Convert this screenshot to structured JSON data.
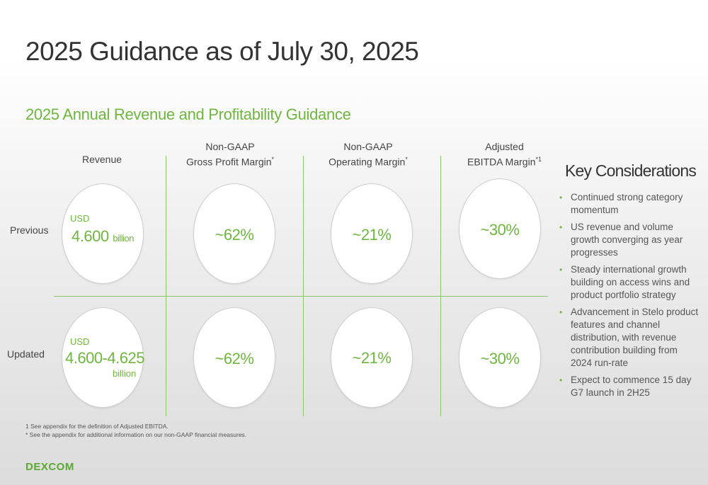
{
  "title": "2025 Guidance as of July 30, 2025",
  "subtitle": "2025 Annual Revenue and Profitability Guidance",
  "columns": [
    {
      "line1": "",
      "line2": "Revenue",
      "sup": ""
    },
    {
      "line1": "Non-GAAP",
      "line2": "Gross Profit Margin",
      "sup": "*"
    },
    {
      "line1": "Non-GAAP",
      "line2": "Operating Margin",
      "sup": "*"
    },
    {
      "line1": "Adjusted",
      "line2": "EBITDA Margin",
      "sup": "*1"
    }
  ],
  "rows": [
    {
      "label": "Previous",
      "revenue": {
        "currency": "USD",
        "value": "4.600",
        "unit": "billion"
      },
      "gross_margin": "~62%",
      "operating_margin": "~21%",
      "ebitda_margin": "~30%"
    },
    {
      "label": "Updated",
      "revenue": {
        "currency": "USD",
        "value": "4.600-4.625",
        "unit": "billion"
      },
      "gross_margin": "~62%",
      "operating_margin": "~21%",
      "ebitda_margin": "~30%"
    }
  ],
  "key_considerations": {
    "title": "Key Considerations",
    "items": [
      "Continued strong category momentum",
      "US revenue and volume growth converging as year progresses",
      "Steady international growth building on access wins and product portfolio strategy",
      "Advancement in Stelo product features and channel distribution, with revenue contribution building from 2024 run-rate",
      "Expect to commence 15 day G7 launch in 2H25"
    ]
  },
  "footnotes": [
    "1 See appendix for the definition of Adjusted EBITDA.",
    "* See the appendix for additional information on our non-GAAP financial measures."
  ],
  "logo": "DEXCOM",
  "colors": {
    "accent": "#6fb63f",
    "text": "#333333"
  }
}
